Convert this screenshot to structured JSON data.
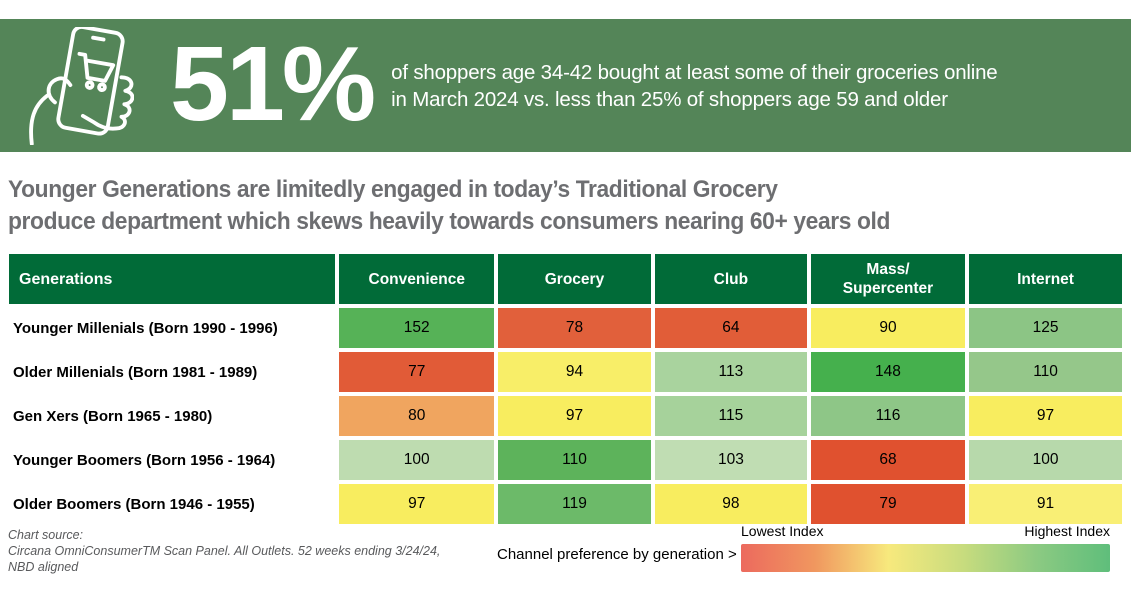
{
  "colors": {
    "banner_green": "#548558",
    "header_green": "#016b38",
    "title_gray": "#6d6e71",
    "source_gray": "#595a5c"
  },
  "banner": {
    "stat": "51%",
    "line1": "of shoppers age 34-42 bought at least some of their groceries online",
    "line2": "in March 2024 vs. less than 25% of shoppers age 59 and older",
    "icon": "hand-holding-phone-with-shopping-cart"
  },
  "title": {
    "line1": "Younger Generations are limitedly engaged in today’s Traditional Grocery",
    "line2": "produce department which skews heavily towards consumers nearing 60+ years old"
  },
  "table": {
    "header": [
      "Generations",
      "Convenience",
      "Grocery",
      "Club",
      "Mass/\nSupercenter",
      "Internet"
    ],
    "cell_colors": [
      [
        "#56b257",
        "#e1603b",
        "#e15d38",
        "#f8ed5f",
        "#8cc585"
      ],
      [
        "#e15b37",
        "#f8ee68",
        "#a9d39e",
        "#45b04d",
        "#95c78a"
      ],
      [
        "#f0a55f",
        "#f8ed5f",
        "#a6d29b",
        "#8ec687",
        "#f8ed5f"
      ],
      [
        "#bedcb0",
        "#5db35b",
        "#c0ddb3",
        "#e0512f",
        "#b7d9ab"
      ],
      [
        "#f8ed5f",
        "#6cba69",
        "#f8ed5f",
        "#e0512f",
        "#f9ef75"
      ]
    ]
  },
  "chart_data": {
    "type": "heatmap",
    "title": "Younger Generations are limitedly engaged in today’s Traditional Grocery produce department which skews heavily towards consumers nearing 60+ years old",
    "stat_callout": "51% of shoppers age 34-42 bought at least some of their groceries online in March 2024 vs. less than 25% of shoppers age 59 and older",
    "columns": [
      "Convenience",
      "Grocery",
      "Club",
      "Mass/Supercenter",
      "Internet"
    ],
    "rows": [
      "Younger Millenials (Born 1990 - 1996)",
      "Older Millenials (Born 1981 - 1989)",
      "Gen Xers (Born 1965 - 1980)",
      "Younger Boomers (Born 1956 - 1964)",
      "Older Boomers (Born 1946 - 1955)"
    ],
    "values": [
      [
        152,
        78,
        64,
        90,
        125
      ],
      [
        77,
        94,
        113,
        148,
        110
      ],
      [
        80,
        97,
        115,
        116,
        97
      ],
      [
        100,
        110,
        103,
        68,
        100
      ],
      [
        97,
        119,
        98,
        79,
        91
      ]
    ],
    "value_semantics": "Channel preference index by generation",
    "colormap": "red (lowest index) through yellow to green (highest index)",
    "legend": {
      "low_label": "Lowest Index",
      "high_label": "Highest Index"
    }
  },
  "footer": {
    "source_label": "Chart source:",
    "source_line1": "Circana OmniConsumerTM Scan Panel. All Outlets. 52 weeks ending 3/24/24,",
    "source_line2": "NBD aligned",
    "note": "Channel preference by generation >",
    "legend_low": "Lowest Index",
    "legend_high": "Highest Index",
    "legend_gradient": [
      "#ec6a5e",
      "#f0975f",
      "#f7e97d",
      "#c8dc7e",
      "#8cca82",
      "#5fbe7b"
    ]
  }
}
